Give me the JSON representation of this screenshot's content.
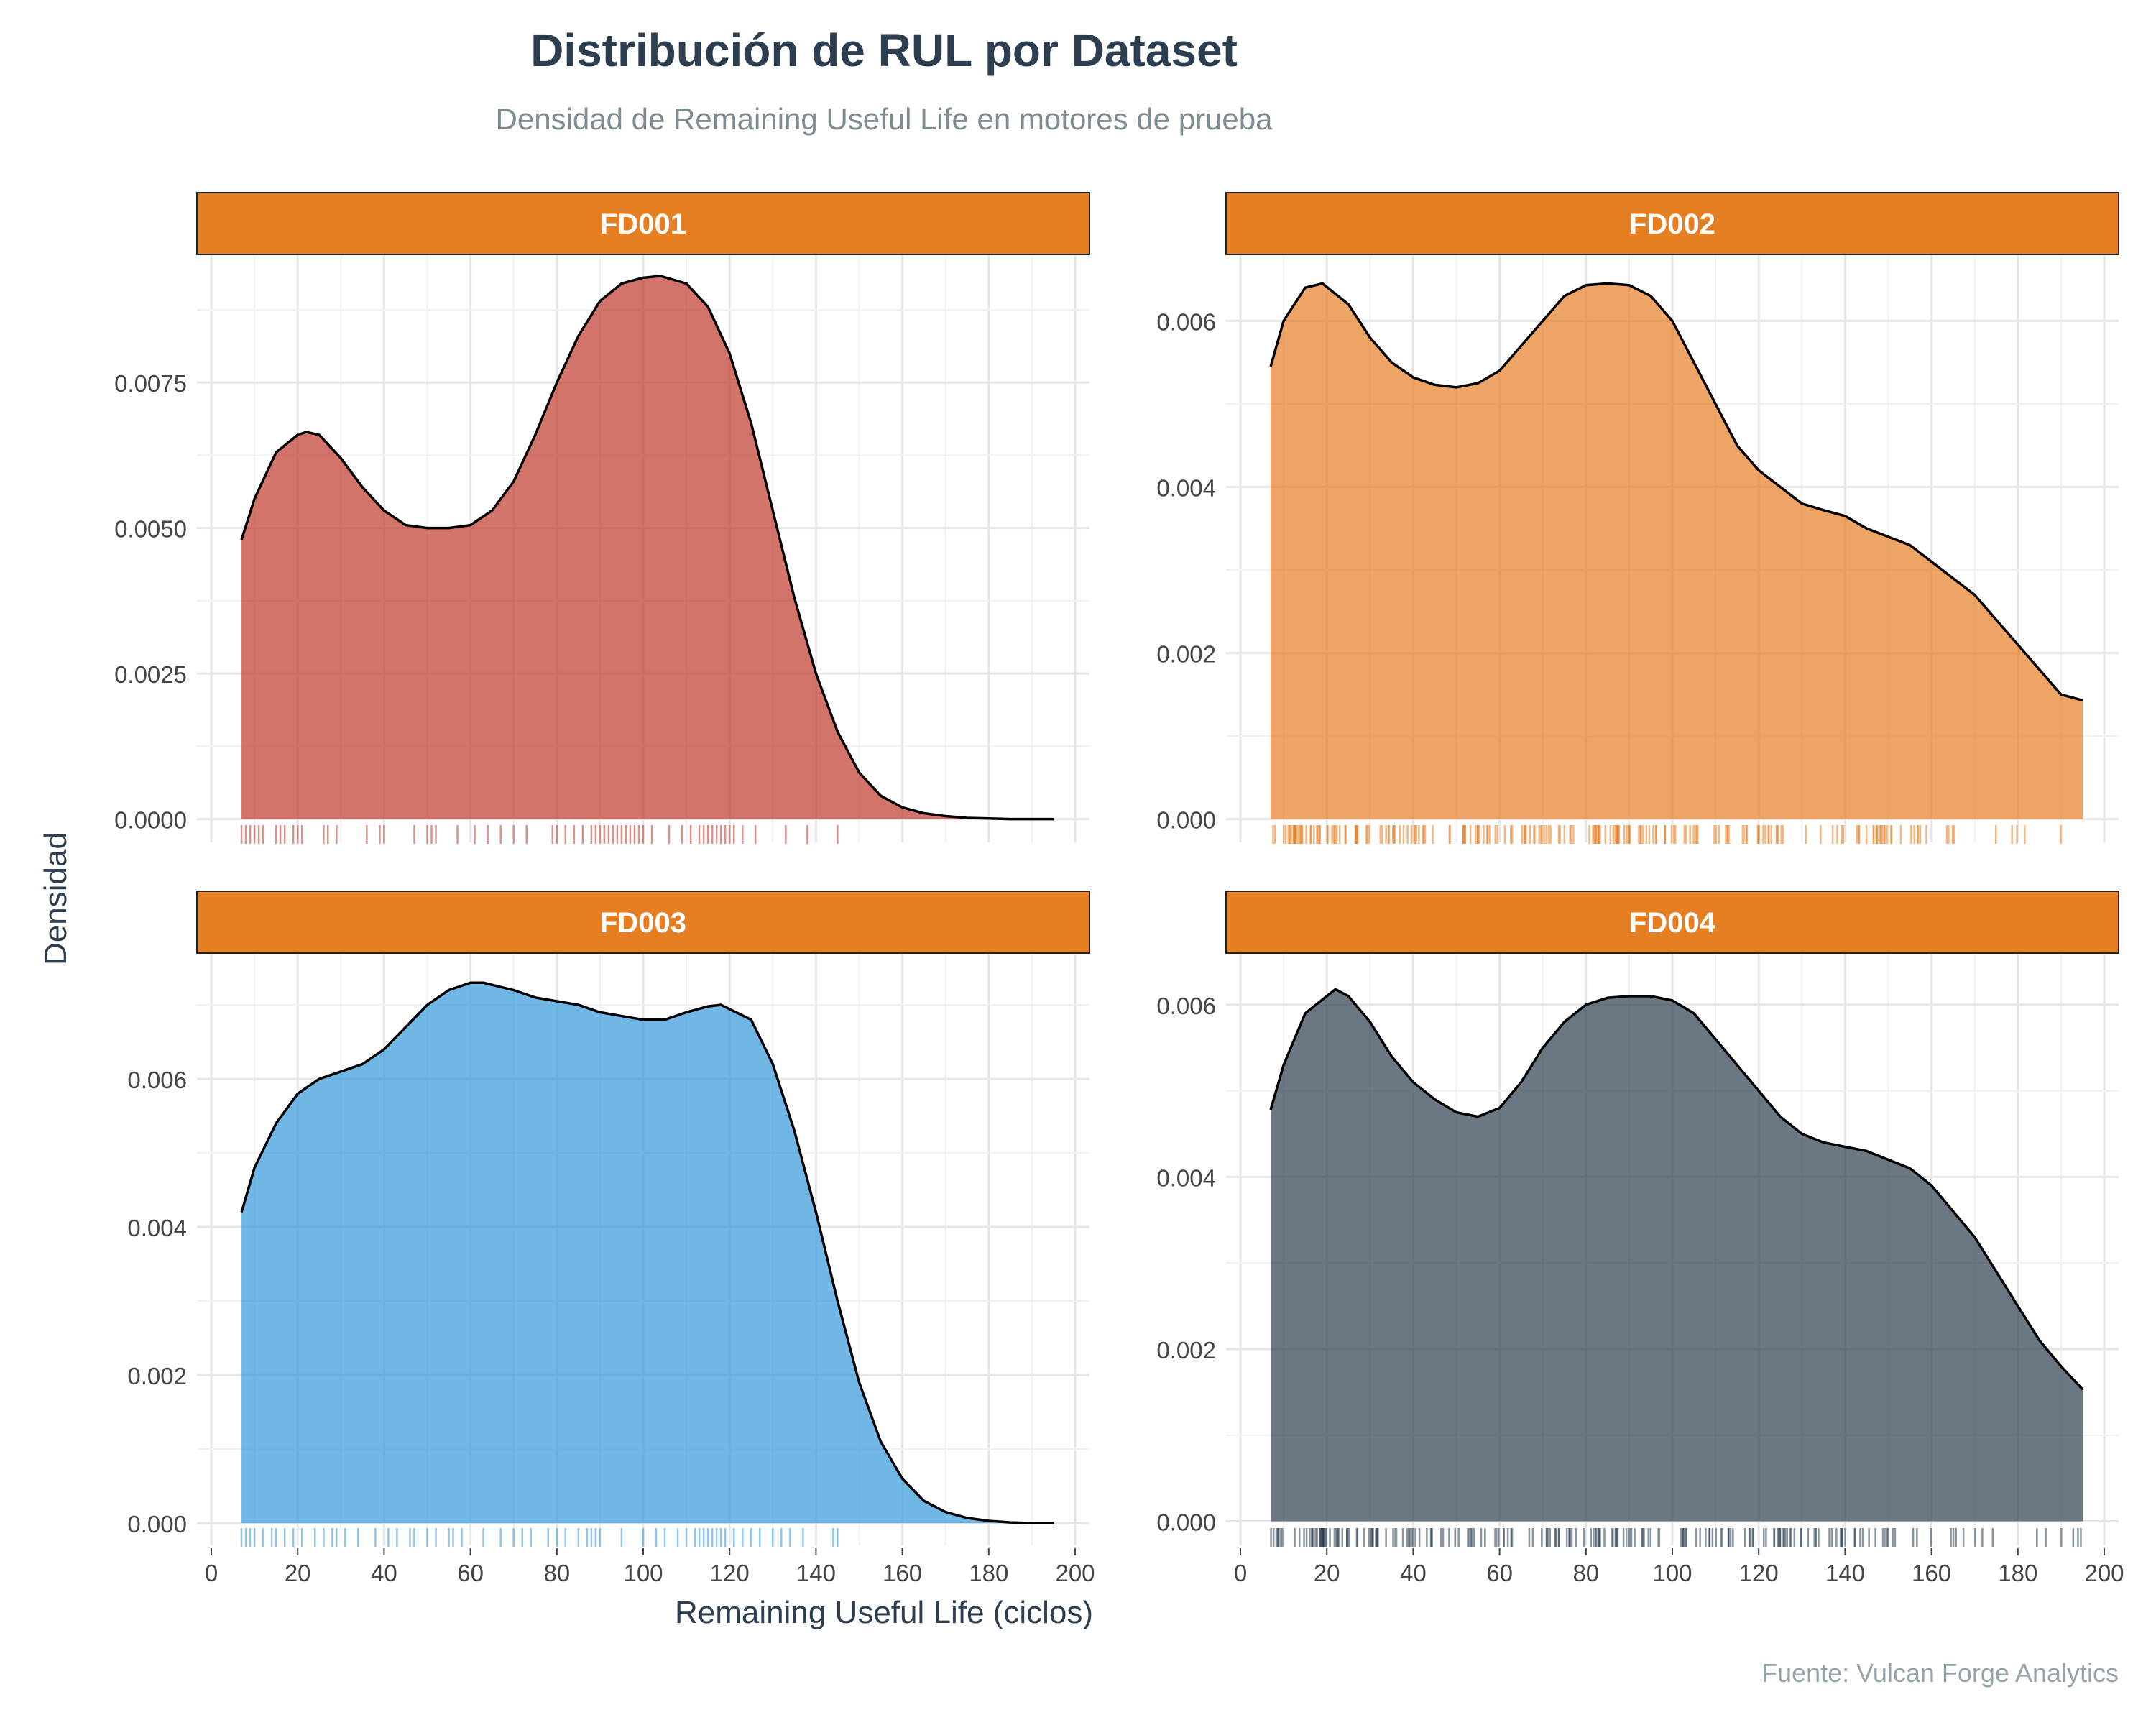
{
  "chart_data": {
    "type": "area",
    "title": "Distribución de RUL por Dataset",
    "subtitle": "Densidad de Remaining Useful Life en motores de prueba",
    "caption": "Fuente: Vulcan Forge Analytics",
    "xlabel": "Remaining Useful Life (ciclos)",
    "ylabel": "Densidad",
    "xlim": [
      0,
      200
    ],
    "x_ticks": [
      0,
      20,
      40,
      60,
      80,
      100,
      120,
      140,
      160,
      180,
      200
    ],
    "grid": true,
    "legend": "none",
    "strip_color": "#e67e22",
    "curve_color": "#000000",
    "panels": [
      {
        "name": "FD001",
        "color": "#c0392b",
        "ylim": [
          -0.0004,
          0.0097
        ],
        "y_ticks": [
          0.0,
          0.0025,
          0.005,
          0.0075
        ],
        "y_tick_labels": [
          "0.0000",
          "0.0025",
          "0.0050",
          "0.0075"
        ],
        "x": [
          7,
          10,
          15,
          20,
          22,
          25,
          30,
          35,
          40,
          45,
          50,
          55,
          60,
          65,
          70,
          75,
          80,
          85,
          90,
          95,
          100,
          104,
          110,
          115,
          120,
          125,
          130,
          135,
          140,
          145,
          150,
          155,
          160,
          165,
          170,
          175,
          180,
          185,
          190,
          195
        ],
        "y": [
          0.0048,
          0.0055,
          0.0063,
          0.0066,
          0.00665,
          0.0066,
          0.0062,
          0.0057,
          0.0053,
          0.00505,
          0.005,
          0.005,
          0.00505,
          0.0053,
          0.0058,
          0.0066,
          0.0075,
          0.0083,
          0.0089,
          0.0092,
          0.0093,
          0.00933,
          0.0092,
          0.0088,
          0.008,
          0.0068,
          0.0053,
          0.0038,
          0.0025,
          0.0015,
          0.0008,
          0.0004,
          0.0002,
          0.0001,
          5e-05,
          2e-05,
          1e-05,
          0.0,
          0.0,
          0.0
        ],
        "rug": [
          7,
          8,
          9,
          10,
          11,
          12,
          15,
          16,
          17,
          19,
          20,
          21,
          26,
          27,
          29,
          36,
          39,
          40,
          47,
          50,
          51,
          52,
          57,
          61,
          64,
          67,
          70,
          73,
          79,
          80,
          82,
          84,
          86,
          88,
          89,
          90,
          91,
          92,
          93,
          94,
          95,
          96,
          97,
          98,
          99,
          100,
          102,
          106,
          109,
          111,
          113,
          114,
          115,
          116,
          117,
          118,
          119,
          120,
          121,
          123,
          126,
          133,
          138,
          145
        ]
      },
      {
        "name": "FD002",
        "color": "#e67e22",
        "ylim": [
          -0.00028,
          0.0068
        ],
        "y_ticks": [
          0.0,
          0.002,
          0.004,
          0.006
        ],
        "y_tick_labels": [
          "0.000",
          "0.002",
          "0.004",
          "0.006"
        ],
        "x": [
          7,
          10,
          15,
          19,
          25,
          30,
          35,
          40,
          45,
          50,
          55,
          60,
          65,
          70,
          75,
          80,
          85,
          90,
          95,
          100,
          105,
          110,
          115,
          120,
          125,
          130,
          135,
          140,
          145,
          150,
          155,
          160,
          165,
          170,
          175,
          180,
          185,
          190,
          195
        ],
        "y": [
          0.00545,
          0.006,
          0.0064,
          0.00645,
          0.0062,
          0.0058,
          0.0055,
          0.00532,
          0.00523,
          0.0052,
          0.00525,
          0.0054,
          0.0057,
          0.006,
          0.0063,
          0.00643,
          0.00645,
          0.00643,
          0.0063,
          0.006,
          0.0055,
          0.005,
          0.0045,
          0.0042,
          0.004,
          0.0038,
          0.00372,
          0.00365,
          0.0035,
          0.0034,
          0.0033,
          0.0031,
          0.0029,
          0.0027,
          0.0024,
          0.0021,
          0.0018,
          0.0015,
          0.00143
        ]
      },
      {
        "name": "FD003",
        "color": "#3498db",
        "ylim": [
          -0.0003,
          0.0077
        ],
        "y_ticks": [
          0.0,
          0.002,
          0.004,
          0.006
        ],
        "y_tick_labels": [
          "0.000",
          "0.002",
          "0.004",
          "0.006"
        ],
        "x": [
          7,
          10,
          15,
          20,
          25,
          30,
          35,
          40,
          45,
          50,
          55,
          60,
          63,
          70,
          75,
          80,
          85,
          90,
          95,
          100,
          105,
          110,
          115,
          118,
          125,
          130,
          135,
          140,
          145,
          150,
          155,
          160,
          165,
          170,
          175,
          180,
          185,
          190,
          195
        ],
        "y": [
          0.0042,
          0.0048,
          0.0054,
          0.0058,
          0.006,
          0.0061,
          0.0062,
          0.0064,
          0.0067,
          0.007,
          0.0072,
          0.0073,
          0.0073,
          0.0072,
          0.0071,
          0.00705,
          0.007,
          0.0069,
          0.00685,
          0.0068,
          0.0068,
          0.0069,
          0.00698,
          0.007,
          0.0068,
          0.0062,
          0.0053,
          0.0042,
          0.003,
          0.0019,
          0.0011,
          0.0006,
          0.0003,
          0.00015,
          7e-05,
          3e-05,
          1e-05,
          0.0,
          0.0
        ],
        "rug": [
          7,
          8,
          9,
          10,
          12,
          14,
          15,
          17,
          19,
          21,
          24,
          26,
          28,
          29,
          31,
          34,
          38,
          41,
          43,
          46,
          47,
          50,
          52,
          55,
          56,
          58,
          63,
          67,
          70,
          72,
          74,
          78,
          80,
          82,
          85,
          87,
          88,
          89,
          90,
          95,
          100,
          103,
          105,
          108,
          110,
          112,
          113,
          114,
          115,
          116,
          117,
          118,
          119,
          121,
          123,
          125,
          127,
          130,
          132,
          134,
          137,
          144,
          145
        ]
      },
      {
        "name": "FD004",
        "color": "#2c3e50",
        "ylim": [
          -0.00028,
          0.0066
        ],
        "y_ticks": [
          0.0,
          0.002,
          0.004,
          0.006
        ],
        "y_tick_labels": [
          "0.000",
          "0.002",
          "0.004",
          "0.006"
        ],
        "x": [
          7,
          10,
          15,
          22,
          25,
          30,
          35,
          40,
          45,
          50,
          55,
          60,
          65,
          70,
          75,
          80,
          85,
          90,
          95,
          100,
          105,
          110,
          115,
          120,
          125,
          130,
          135,
          140,
          145,
          150,
          155,
          160,
          165,
          170,
          175,
          180,
          185,
          190,
          195
        ],
        "y": [
          0.00478,
          0.0053,
          0.0059,
          0.00618,
          0.0061,
          0.0058,
          0.0054,
          0.0051,
          0.0049,
          0.00475,
          0.0047,
          0.0048,
          0.0051,
          0.0055,
          0.0058,
          0.006,
          0.00608,
          0.0061,
          0.0061,
          0.00605,
          0.0059,
          0.0056,
          0.0053,
          0.005,
          0.0047,
          0.0045,
          0.0044,
          0.00435,
          0.0043,
          0.0042,
          0.0041,
          0.0039,
          0.0036,
          0.0033,
          0.0029,
          0.0025,
          0.0021,
          0.0018,
          0.00153
        ]
      }
    ]
  }
}
